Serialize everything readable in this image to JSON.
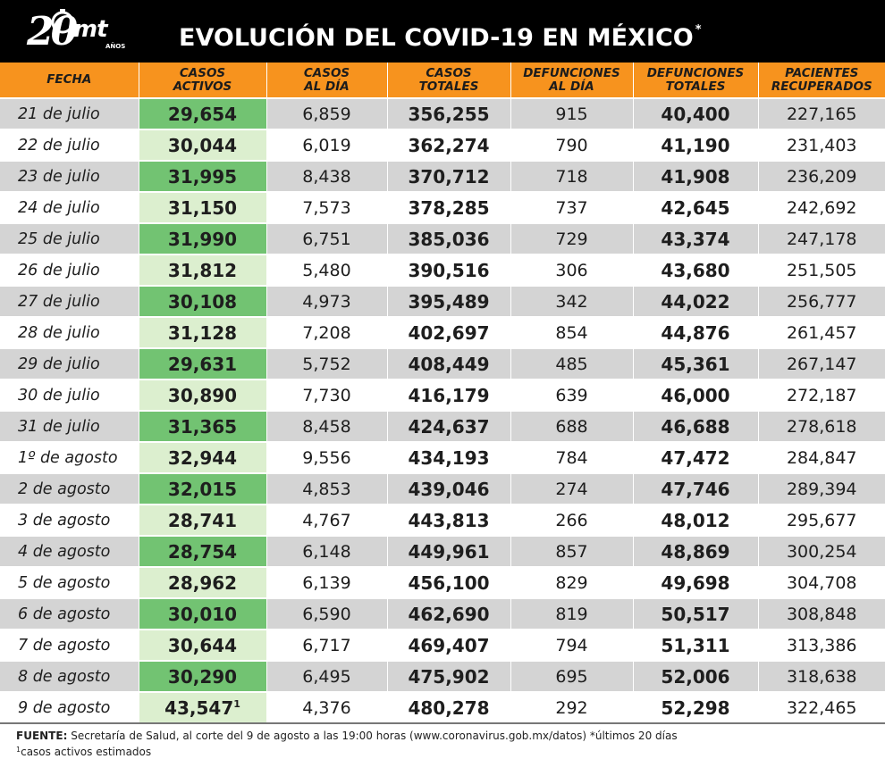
{
  "header": {
    "logo": {
      "number": "20",
      "brand": "mt",
      "years": "AÑOS"
    },
    "title": "EVOLUCIÓN DEL COVID-19 EN MÉXICO",
    "title_mark": "*"
  },
  "chart_data": {
    "type": "table",
    "columns": [
      [
        "FECHA"
      ],
      [
        "CASOS",
        "ACTIVOS"
      ],
      [
        "CASOS",
        "AL DÍA"
      ],
      [
        "CASOS",
        "TOTALES"
      ],
      [
        "DEFUNCIONES",
        "AL DÍA"
      ],
      [
        "DEFUNCIONES",
        "TOTALES"
      ],
      [
        "PACIENTES",
        "RECUPERADOS"
      ]
    ],
    "rows": [
      [
        "21 de julio",
        "29,654",
        "6,859",
        "356,255",
        "915",
        "40,400",
        "227,165"
      ],
      [
        "22 de julio",
        "30,044",
        "6,019",
        "362,274",
        "790",
        "41,190",
        "231,403"
      ],
      [
        "23 de julio",
        "31,995",
        "8,438",
        "370,712",
        "718",
        "41,908",
        "236,209"
      ],
      [
        "24 de julio",
        "31,150",
        "7,573",
        "378,285",
        "737",
        "42,645",
        "242,692"
      ],
      [
        "25 de julio",
        "31,990",
        "6,751",
        "385,036",
        "729",
        "43,374",
        "247,178"
      ],
      [
        "26 de julio",
        "31,812",
        "5,480",
        "390,516",
        "306",
        "43,680",
        "251,505"
      ],
      [
        "27 de julio",
        "30,108",
        "4,973",
        "395,489",
        "342",
        "44,022",
        "256,777"
      ],
      [
        "28 de julio",
        "31,128",
        "7,208",
        "402,697",
        "854",
        "44,876",
        "261,457"
      ],
      [
        "29 de julio",
        "29,631",
        "5,752",
        "408,449",
        "485",
        "45,361",
        "267,147"
      ],
      [
        "30 de julio",
        "30,890",
        "7,730",
        "416,179",
        "639",
        "46,000",
        "272,187"
      ],
      [
        "31 de julio",
        "31,365",
        "8,458",
        "424,637",
        "688",
        "46,688",
        "278,618"
      ],
      [
        "1º de agosto",
        "32,944",
        "9,556",
        "434,193",
        "784",
        "47,472",
        "284,847"
      ],
      [
        "2 de agosto",
        "32,015",
        "4,853",
        "439,046",
        "274",
        "47,746",
        "289,394"
      ],
      [
        "3 de agosto",
        "28,741",
        "4,767",
        "443,813",
        "266",
        "48,012",
        "295,677"
      ],
      [
        "4 de agosto",
        "28,754",
        "6,148",
        "449,961",
        "857",
        "48,869",
        "300,254"
      ],
      [
        "5 de agosto",
        "28,962",
        "6,139",
        "456,100",
        "829",
        "49,698",
        "304,708"
      ],
      [
        "6 de agosto",
        "30,010",
        "6,590",
        "462,690",
        "819",
        "50,517",
        "308,848"
      ],
      [
        "7 de agosto",
        "30,644",
        "6,717",
        "469,407",
        "794",
        "51,311",
        "313,386"
      ],
      [
        "8 de agosto",
        "30,290",
        "6,495",
        "475,902",
        "695",
        "52,006",
        "318,638"
      ],
      [
        "9 de agosto",
        "43,547",
        "4,376",
        "480,278",
        "292",
        "52,298",
        "322,465"
      ]
    ],
    "footnote_row": 19,
    "footnote_mark": "1",
    "colors": {
      "header_bg": "#f7931e",
      "active_highlight": "#72c372",
      "active_light": "#dcefcf",
      "row_shade": "#d4d4d4"
    }
  },
  "footer": {
    "source_label": "FUENTE:",
    "source_text": "Secretaría de Salud, al corte del 9 de agosto a las 19:00 horas (www.coronavirus.gob.mx/datos)",
    "asterisk_mark": "*",
    "asterisk_note": "últimos 20 días",
    "footnote_mark": "1",
    "footnote_text": "casos activos estimados"
  }
}
